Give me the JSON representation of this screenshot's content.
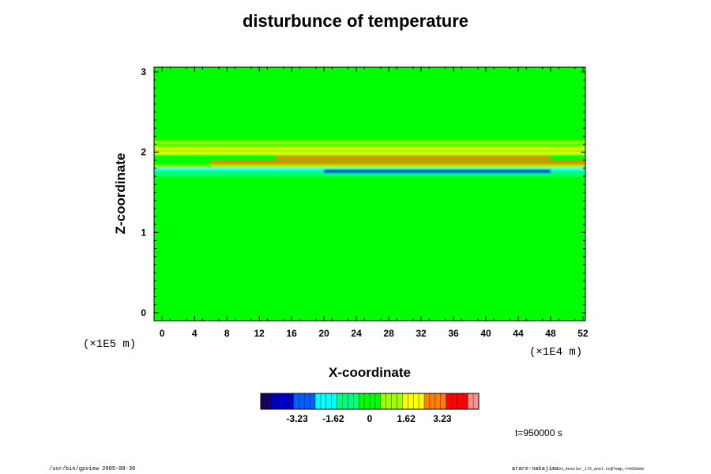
{
  "chart_data": {
    "type": "heatmap",
    "title": "disturbunce of temperature",
    "xlabel": "X-coordinate",
    "ylabel": "Z-coordinate",
    "x_ticks": [
      "0",
      "4",
      "8",
      "12",
      "16",
      "20",
      "24",
      "28",
      "32",
      "36",
      "40",
      "44",
      "48",
      "52"
    ],
    "y_ticks": [
      "0",
      "1",
      "2",
      "3"
    ],
    "x_scale_label": "(×1E4 m)",
    "y_scale_label": "(×1E5 m)",
    "xlim": [
      -1,
      52.3
    ],
    "ylim": [
      -0.1,
      3.06
    ],
    "colorbar": {
      "ticks": [
        "-3.23",
        "-1.62",
        "0",
        "1.62",
        "3.23"
      ],
      "range": [
        -4.85,
        4.85
      ],
      "colors": [
        "#1a0060",
        "#0000c8",
        "#0060ff",
        "#00ffff",
        "#00ff80",
        "#00ff00",
        "#a0ff00",
        "#ffff00",
        "#ff8000",
        "#ff0000",
        "#ff9090"
      ]
    },
    "features": [
      {
        "z": 2.12,
        "x0": -1,
        "x1": 52.3,
        "value": 0.9
      },
      {
        "z": 2.05,
        "x0": -1,
        "x1": 52.3,
        "value": 2.0
      },
      {
        "z": 1.99,
        "x0": -1,
        "x1": 52.3,
        "value": 1.5
      },
      {
        "z": 1.93,
        "x0": 14,
        "x1": 48,
        "value": 2.6
      },
      {
        "z": 1.87,
        "x0": 6,
        "x1": 52.3,
        "value": 3.2
      },
      {
        "z": 1.82,
        "x0": -1,
        "x1": 52.3,
        "value": 1.4
      },
      {
        "z": 1.78,
        "x0": -1,
        "x1": 52.3,
        "value": -1.8
      },
      {
        "z": 1.76,
        "x0": 20,
        "x1": 48,
        "value": -3.6
      },
      {
        "z": 1.72,
        "x0": -1,
        "x1": 52.3,
        "value": -0.8
      }
    ]
  },
  "footer": {
    "left": "/usr/bin/gpview 2005-08-30",
    "right_main": "arare-nakajima",
    "right_small": "03_Kessler_175_anal.nc@Temp,t=950000"
  },
  "time_label": "t=950000 s"
}
